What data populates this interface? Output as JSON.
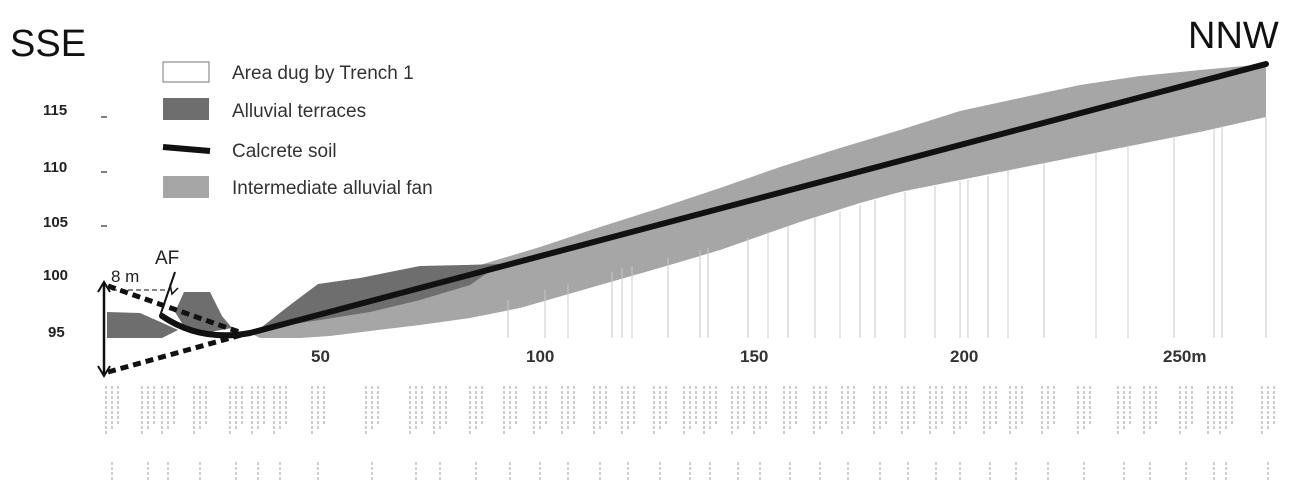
{
  "directions": {
    "left": "SSE",
    "right": "NNW"
  },
  "legend": [
    {
      "label": "Area dug by Trench 1",
      "icon": "trench-area-swatch"
    },
    {
      "label": "Alluvial terraces",
      "icon": "terrace-swatch"
    },
    {
      "label": "Calcrete soil",
      "icon": "calcrete-line-swatch"
    },
    {
      "label": "Intermediate alluvial fan",
      "icon": "fan-swatch"
    }
  ],
  "y_axis": {
    "ticks": [
      "95",
      "100",
      "105",
      "110",
      "115"
    ]
  },
  "x_axis": {
    "ticks": [
      "50",
      "100",
      "150",
      "200",
      "250m"
    ]
  },
  "annotations": {
    "fault_label": "AF",
    "scale_label": "8 m"
  },
  "colors": {
    "terrace": "#6e6e6e",
    "fan": "#a6a6a6",
    "calcrete": "#111111",
    "trench": "#ffffff"
  }
}
